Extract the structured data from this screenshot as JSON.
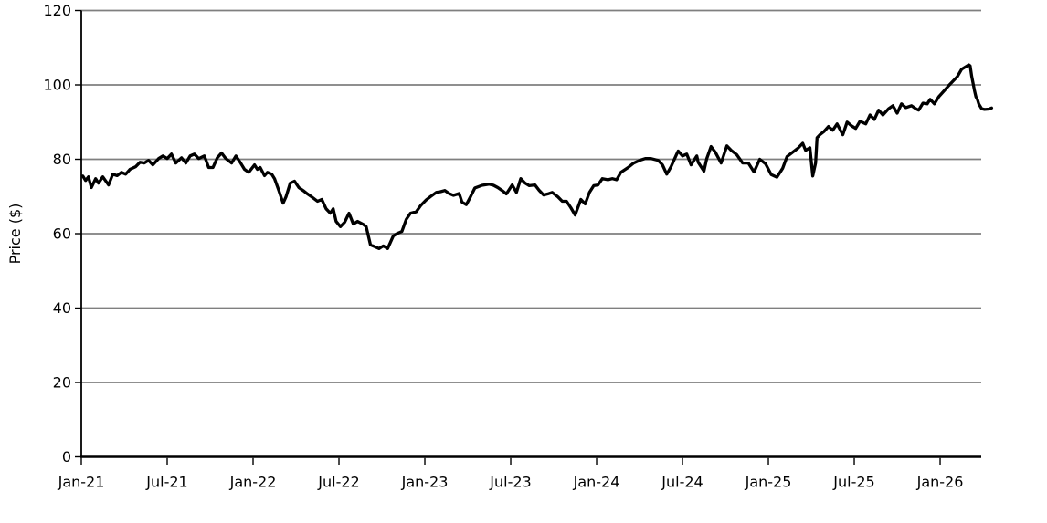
{
  "chart_data": {
    "type": "line",
    "title": "",
    "xlabel": "",
    "ylabel": "Price ($)",
    "grid": "horizontal",
    "legend": "none",
    "ylim": [
      0,
      120
    ],
    "yticks": [
      0,
      20,
      40,
      60,
      80,
      100,
      120
    ],
    "ytick_labels": [
      "0",
      "20",
      "40",
      "60",
      "80",
      "100",
      "120"
    ],
    "xtick_labels": [
      "Jan-21",
      "Jul-21",
      "Jan-22",
      "Jul-22",
      "Jan-23",
      "Jul-23",
      "Jan-24",
      "Jul-24",
      "Jan-25",
      "Jul-25",
      "Jan-26"
    ],
    "xtick_months": [
      0,
      6,
      12,
      18,
      24,
      30,
      36,
      42,
      48,
      54,
      60
    ],
    "xlim_months": [
      0,
      62.9
    ],
    "colors": {
      "line": "#000000",
      "grid": "#7f7f7f",
      "axis": "#000000",
      "background": "#ffffff"
    },
    "series": [
      {
        "name": "Price",
        "units": "USD",
        "points": [
          [
            0.1,
            75.5
          ],
          [
            0.3,
            74.3
          ],
          [
            0.5,
            75.3
          ],
          [
            0.7,
            72.4
          ],
          [
            1.0,
            74.8
          ],
          [
            1.2,
            73.6
          ],
          [
            1.5,
            75.3
          ],
          [
            1.9,
            73.1
          ],
          [
            2.2,
            76.0
          ],
          [
            2.5,
            75.6
          ],
          [
            2.8,
            76.5
          ],
          [
            3.1,
            76.0
          ],
          [
            3.4,
            77.3
          ],
          [
            3.8,
            78.0
          ],
          [
            4.1,
            79.2
          ],
          [
            4.4,
            79.0
          ],
          [
            4.7,
            79.7
          ],
          [
            5.0,
            78.5
          ],
          [
            5.4,
            80.2
          ],
          [
            5.7,
            80.9
          ],
          [
            6.0,
            80.2
          ],
          [
            6.3,
            81.4
          ],
          [
            6.6,
            79.0
          ],
          [
            7.0,
            80.4
          ],
          [
            7.3,
            79.0
          ],
          [
            7.6,
            80.9
          ],
          [
            7.9,
            81.4
          ],
          [
            8.2,
            80.2
          ],
          [
            8.6,
            80.9
          ],
          [
            8.9,
            77.8
          ],
          [
            9.2,
            77.8
          ],
          [
            9.5,
            80.4
          ],
          [
            9.8,
            81.7
          ],
          [
            10.1,
            80.2
          ],
          [
            10.5,
            79.0
          ],
          [
            10.8,
            80.9
          ],
          [
            11.1,
            79.2
          ],
          [
            11.4,
            77.3
          ],
          [
            11.7,
            76.5
          ],
          [
            12.1,
            78.5
          ],
          [
            12.3,
            77.3
          ],
          [
            12.5,
            77.8
          ],
          [
            12.8,
            75.6
          ],
          [
            13.0,
            76.5
          ],
          [
            13.3,
            76.0
          ],
          [
            13.5,
            74.8
          ],
          [
            13.8,
            71.6
          ],
          [
            14.1,
            68.2
          ],
          [
            14.3,
            69.9
          ],
          [
            14.6,
            73.6
          ],
          [
            14.9,
            74.1
          ],
          [
            15.2,
            72.4
          ],
          [
            15.5,
            71.6
          ],
          [
            15.8,
            70.7
          ],
          [
            16.1,
            69.9
          ],
          [
            16.5,
            68.7
          ],
          [
            16.8,
            69.2
          ],
          [
            17.1,
            66.7
          ],
          [
            17.4,
            65.5
          ],
          [
            17.6,
            66.7
          ],
          [
            17.8,
            63.3
          ],
          [
            18.1,
            61.9
          ],
          [
            18.4,
            63.1
          ],
          [
            18.7,
            65.5
          ],
          [
            19.0,
            62.6
          ],
          [
            19.3,
            63.3
          ],
          [
            19.7,
            62.5
          ],
          [
            19.9,
            61.9
          ],
          [
            20.2,
            57.0
          ],
          [
            20.5,
            56.5
          ],
          [
            20.8,
            56.0
          ],
          [
            21.1,
            56.7
          ],
          [
            21.4,
            56.0
          ],
          [
            21.8,
            59.4
          ],
          [
            22.1,
            60.1
          ],
          [
            22.4,
            60.6
          ],
          [
            22.7,
            63.8
          ],
          [
            23.0,
            65.5
          ],
          [
            23.4,
            65.9
          ],
          [
            23.7,
            67.5
          ],
          [
            24.1,
            69.1
          ],
          [
            24.4,
            70.0
          ],
          [
            24.8,
            71.1
          ],
          [
            25.1,
            71.3
          ],
          [
            25.4,
            71.6
          ],
          [
            25.7,
            70.8
          ],
          [
            26.0,
            70.3
          ],
          [
            26.4,
            70.8
          ],
          [
            26.6,
            68.5
          ],
          [
            26.9,
            67.8
          ],
          [
            27.2,
            70.0
          ],
          [
            27.5,
            72.3
          ],
          [
            28.0,
            73.0
          ],
          [
            28.5,
            73.3
          ],
          [
            28.8,
            73.0
          ],
          [
            29.1,
            72.4
          ],
          [
            29.4,
            71.6
          ],
          [
            29.7,
            70.7
          ],
          [
            30.1,
            73.1
          ],
          [
            30.4,
            71.1
          ],
          [
            30.7,
            74.8
          ],
          [
            31.0,
            73.6
          ],
          [
            31.3,
            72.9
          ],
          [
            31.7,
            73.1
          ],
          [
            32.0,
            71.6
          ],
          [
            32.3,
            70.4
          ],
          [
            32.6,
            70.7
          ],
          [
            32.9,
            71.1
          ],
          [
            33.3,
            69.9
          ],
          [
            33.6,
            68.7
          ],
          [
            33.9,
            68.7
          ],
          [
            34.2,
            67.0
          ],
          [
            34.5,
            65.0
          ],
          [
            34.9,
            69.2
          ],
          [
            35.2,
            68.0
          ],
          [
            35.5,
            71.1
          ],
          [
            35.8,
            72.9
          ],
          [
            36.1,
            73.1
          ],
          [
            36.4,
            74.8
          ],
          [
            36.8,
            74.5
          ],
          [
            37.1,
            74.8
          ],
          [
            37.4,
            74.5
          ],
          [
            37.7,
            76.5
          ],
          [
            38.2,
            77.8
          ],
          [
            38.6,
            79.0
          ],
          [
            39.0,
            79.7
          ],
          [
            39.4,
            80.2
          ],
          [
            39.8,
            80.2
          ],
          [
            40.3,
            79.7
          ],
          [
            40.6,
            78.5
          ],
          [
            40.9,
            76.0
          ],
          [
            41.2,
            78.0
          ],
          [
            41.6,
            81.4
          ],
          [
            41.7,
            82.2
          ],
          [
            42.0,
            80.9
          ],
          [
            42.3,
            81.4
          ],
          [
            42.6,
            78.5
          ],
          [
            43.0,
            80.9
          ],
          [
            43.1,
            79.2
          ],
          [
            43.5,
            76.8
          ],
          [
            43.7,
            80.2
          ],
          [
            44.0,
            83.4
          ],
          [
            44.3,
            81.9
          ],
          [
            44.7,
            79.0
          ],
          [
            45.1,
            83.6
          ],
          [
            45.4,
            82.4
          ],
          [
            45.8,
            81.2
          ],
          [
            46.2,
            79.0
          ],
          [
            46.6,
            79.0
          ],
          [
            47.0,
            76.6
          ],
          [
            47.4,
            80.0
          ],
          [
            47.8,
            78.8
          ],
          [
            48.2,
            75.9
          ],
          [
            48.6,
            75.2
          ],
          [
            49.0,
            77.6
          ],
          [
            49.3,
            80.7
          ],
          [
            49.7,
            81.9
          ],
          [
            50.1,
            83.1
          ],
          [
            50.4,
            84.3
          ],
          [
            50.6,
            82.4
          ],
          [
            50.9,
            83.1
          ],
          [
            51.1,
            75.5
          ],
          [
            51.3,
            79.0
          ],
          [
            51.4,
            85.8
          ],
          [
            51.6,
            86.6
          ],
          [
            51.9,
            87.5
          ],
          [
            52.2,
            88.8
          ],
          [
            52.5,
            87.8
          ],
          [
            52.8,
            89.5
          ],
          [
            53.2,
            86.6
          ],
          [
            53.5,
            90.0
          ],
          [
            53.8,
            89.0
          ],
          [
            54.1,
            88.3
          ],
          [
            54.4,
            90.2
          ],
          [
            54.8,
            89.5
          ],
          [
            55.1,
            91.9
          ],
          [
            55.4,
            90.7
          ],
          [
            55.7,
            93.2
          ],
          [
            56.0,
            91.9
          ],
          [
            56.4,
            93.6
          ],
          [
            56.7,
            94.4
          ],
          [
            57.0,
            92.4
          ],
          [
            57.3,
            94.9
          ],
          [
            57.6,
            93.9
          ],
          [
            58.0,
            94.4
          ],
          [
            58.3,
            93.6
          ],
          [
            58.5,
            93.2
          ],
          [
            58.8,
            95.1
          ],
          [
            59.1,
            94.9
          ],
          [
            59.3,
            96.1
          ],
          [
            59.6,
            94.9
          ],
          [
            59.9,
            96.8
          ],
          [
            60.3,
            98.5
          ],
          [
            60.6,
            99.8
          ],
          [
            60.9,
            101.0
          ],
          [
            61.2,
            102.2
          ],
          [
            61.5,
            104.2
          ],
          [
            61.8,
            104.9
          ],
          [
            62.0,
            105.4
          ],
          [
            62.1,
            105.1
          ],
          [
            62.2,
            102.4
          ],
          [
            62.4,
            98.5
          ],
          [
            62.5,
            96.8
          ],
          [
            62.6,
            96.1
          ],
          [
            62.7,
            94.9
          ],
          [
            62.9,
            93.6
          ],
          [
            63.1,
            93.4
          ],
          [
            63.4,
            93.5
          ],
          [
            63.6,
            93.8
          ]
        ]
      }
    ]
  }
}
